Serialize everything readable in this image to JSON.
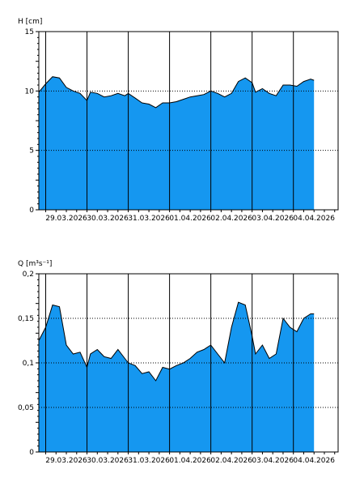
{
  "chart_data": [
    {
      "type": "area",
      "ylabel": "H [cm]",
      "ylim": [
        0,
        15
      ],
      "yticks": [
        "0",
        "5",
        "10",
        "15"
      ],
      "ytick_values": [
        0,
        5,
        10,
        15
      ],
      "xlim": [
        "2026-03-28T20:00",
        "2026-04-05T02:00"
      ],
      "day_boundaries": [
        "2026-03-29T00:00",
        "2026-03-30T00:00",
        "2026-03-31T00:00",
        "2026-04-01T00:00",
        "2026-04-02T00:00",
        "2026-04-03T00:00",
        "2026-04-04T00:00"
      ],
      "xtick_labels": [
        "29.03.2026",
        "30.03.2026",
        "31.03.2026",
        "01.04.2026",
        "02.04.2026",
        "03.04.2026",
        "04.04.2026"
      ],
      "grid": "dotted horizontal lines at 5 and 10",
      "fill_color": "#1597f0",
      "series": [
        {
          "x": [
            "2026-03-28T20:00",
            "2026-03-29T00:00",
            "2026-03-29T04:00",
            "2026-03-29T08:00",
            "2026-03-29T12:00",
            "2026-03-29T16:00",
            "2026-03-29T20:00",
            "2026-03-30T00:00",
            "2026-03-30T02:00",
            "2026-03-30T06:00",
            "2026-03-30T10:00",
            "2026-03-30T14:00",
            "2026-03-30T18:00",
            "2026-03-30T22:00",
            "2026-03-31T00:00",
            "2026-03-31T04:00",
            "2026-03-31T08:00",
            "2026-03-31T12:00",
            "2026-03-31T16:00",
            "2026-03-31T20:00",
            "2026-04-01T00:00",
            "2026-04-01T04:00",
            "2026-04-01T08:00",
            "2026-04-01T12:00",
            "2026-04-01T16:00",
            "2026-04-01T20:00",
            "2026-04-02T00:00",
            "2026-04-02T04:00",
            "2026-04-02T08:00",
            "2026-04-02T12:00",
            "2026-04-02T16:00",
            "2026-04-02T20:00",
            "2026-04-03T00:00",
            "2026-04-03T02:00",
            "2026-04-03T06:00",
            "2026-04-03T10:00",
            "2026-04-03T14:00",
            "2026-04-03T18:00",
            "2026-04-03T22:00",
            "2026-04-04T02:00",
            "2026-04-04T06:00",
            "2026-04-04T10:00",
            "2026-04-04T12:00"
          ],
          "values": [
            9.9,
            10.6,
            11.2,
            11.1,
            10.3,
            10.0,
            9.8,
            9.2,
            9.9,
            9.8,
            9.5,
            9.6,
            9.8,
            9.6,
            9.8,
            9.4,
            9.0,
            8.9,
            8.6,
            9.0,
            9.0,
            9.1,
            9.3,
            9.5,
            9.6,
            9.7,
            10.0,
            9.8,
            9.5,
            9.8,
            10.8,
            11.1,
            10.7,
            9.9,
            10.2,
            9.8,
            9.6,
            10.5,
            10.5,
            10.4,
            10.8,
            11.0,
            10.9
          ]
        }
      ]
    },
    {
      "type": "area",
      "ylabel": "Q [m³s⁻¹]",
      "ylim": [
        0,
        0.2
      ],
      "yticks": [
        "0",
        "0,05",
        "0,1",
        "0,15",
        "0,2"
      ],
      "ytick_values": [
        0,
        0.05,
        0.1,
        0.15,
        0.2
      ],
      "xlim": [
        "2026-03-28T20:00",
        "2026-04-05T02:00"
      ],
      "day_boundaries": [
        "2026-03-29T00:00",
        "2026-03-30T00:00",
        "2026-03-31T00:00",
        "2026-04-01T00:00",
        "2026-04-02T00:00",
        "2026-04-03T00:00",
        "2026-04-04T00:00"
      ],
      "xtick_labels": [
        "29.03.2026",
        "30.03.2026",
        "31.03.2026",
        "01.04.2026",
        "02.04.2026",
        "03.04.2026",
        "04.04.2026"
      ],
      "grid": "dotted horizontal lines at 0.05, 0.1 and 0.15",
      "fill_color": "#1597f0",
      "series": [
        {
          "x": [
            "2026-03-28T20:00",
            "2026-03-29T00:00",
            "2026-03-29T04:00",
            "2026-03-29T08:00",
            "2026-03-29T12:00",
            "2026-03-29T16:00",
            "2026-03-29T20:00",
            "2026-03-30T00:00",
            "2026-03-30T02:00",
            "2026-03-30T06:00",
            "2026-03-30T10:00",
            "2026-03-30T14:00",
            "2026-03-30T18:00",
            "2026-03-30T22:00",
            "2026-03-31T00:00",
            "2026-03-31T04:00",
            "2026-03-31T08:00",
            "2026-03-31T12:00",
            "2026-03-31T16:00",
            "2026-03-31T20:00",
            "2026-04-01T00:00",
            "2026-04-01T04:00",
            "2026-04-01T08:00",
            "2026-04-01T12:00",
            "2026-04-01T16:00",
            "2026-04-01T20:00",
            "2026-04-02T00:00",
            "2026-04-02T04:00",
            "2026-04-02T08:00",
            "2026-04-02T12:00",
            "2026-04-02T16:00",
            "2026-04-02T20:00",
            "2026-04-03T00:00",
            "2026-04-03T02:00",
            "2026-04-03T06:00",
            "2026-04-03T10:00",
            "2026-04-03T14:00",
            "2026-04-03T18:00",
            "2026-04-03T22:00",
            "2026-04-04T02:00",
            "2026-04-04T06:00",
            "2026-04-04T10:00",
            "2026-04-04T12:00"
          ],
          "values": [
            0.125,
            0.14,
            0.165,
            0.163,
            0.12,
            0.11,
            0.112,
            0.095,
            0.11,
            0.115,
            0.107,
            0.105,
            0.115,
            0.105,
            0.1,
            0.097,
            0.088,
            0.09,
            0.08,
            0.095,
            0.093,
            0.097,
            0.1,
            0.105,
            0.112,
            0.115,
            0.12,
            0.11,
            0.1,
            0.14,
            0.168,
            0.165,
            0.13,
            0.11,
            0.12,
            0.105,
            0.11,
            0.15,
            0.14,
            0.135,
            0.15,
            0.155,
            0.155
          ]
        }
      ]
    }
  ]
}
